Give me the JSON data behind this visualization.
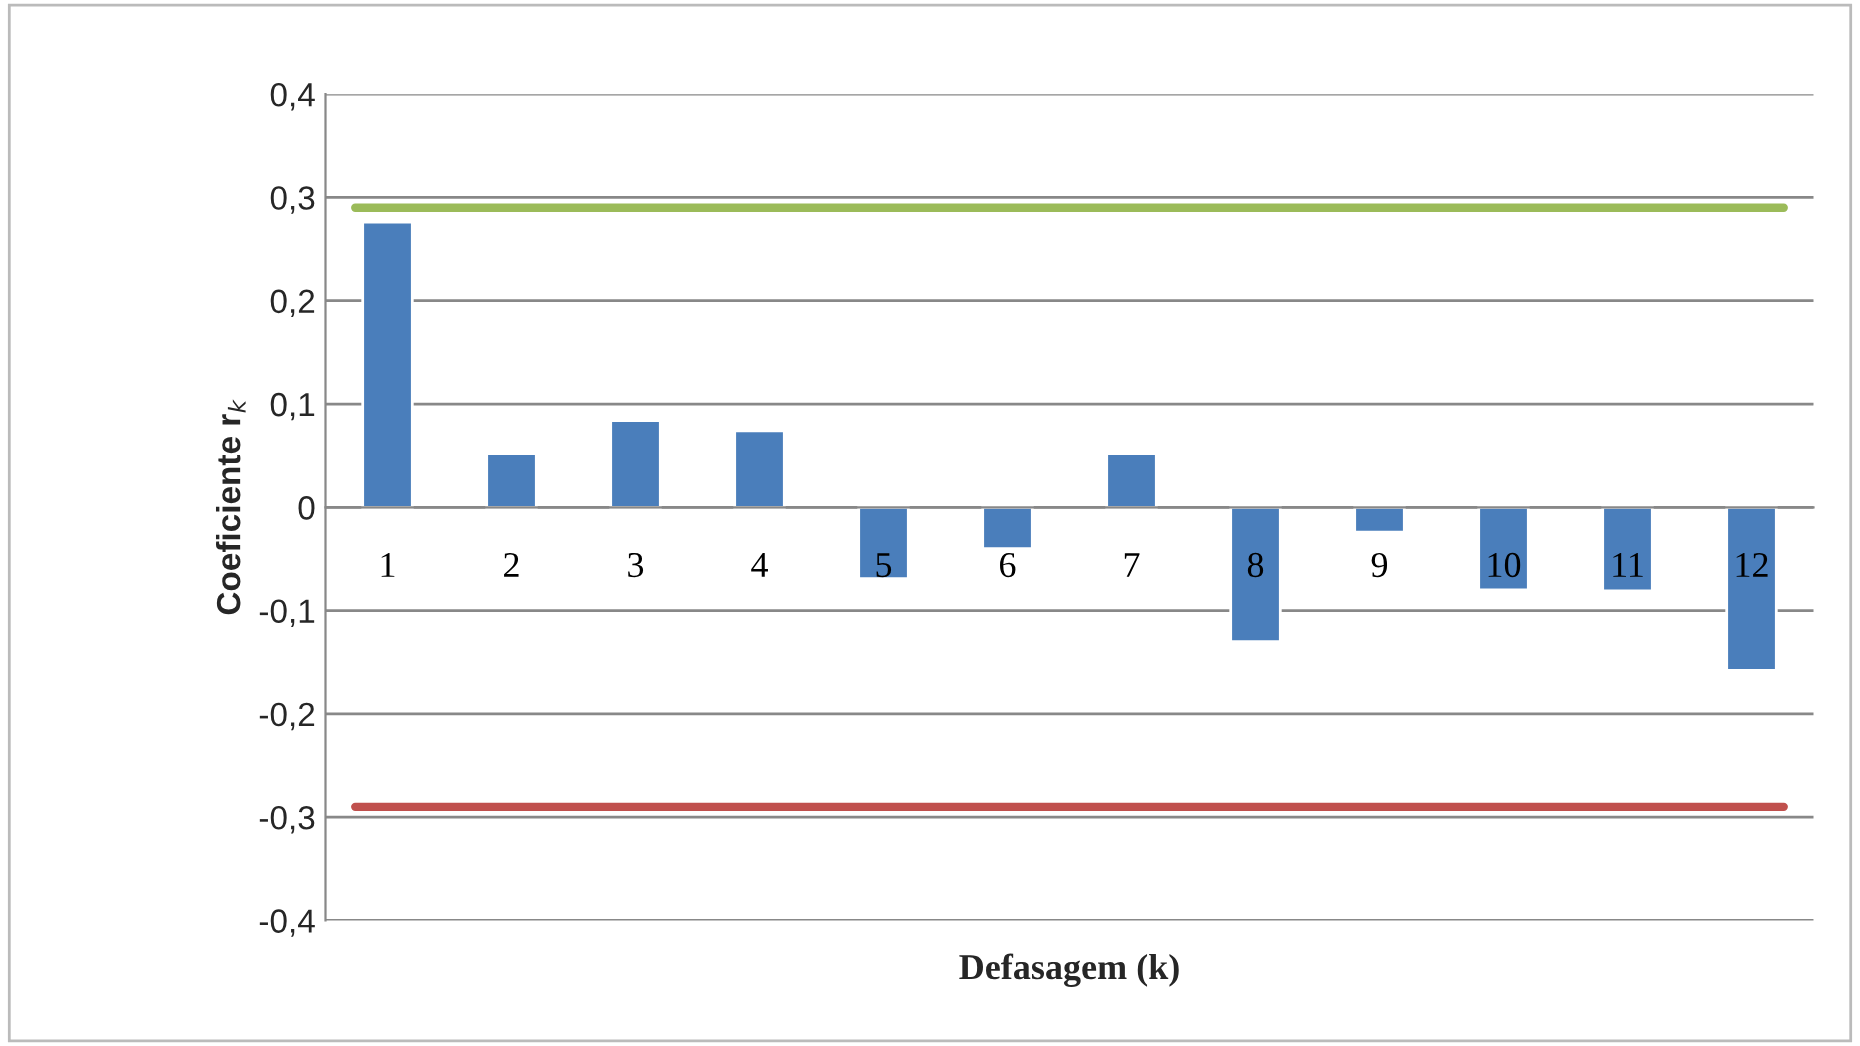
{
  "chart_data": {
    "type": "bar",
    "xlabel": "Defasagem (k)",
    "ylabel": "Coeficiente r$_{k}$",
    "categories": [
      "1",
      "2",
      "3",
      "4",
      "5",
      "6",
      "7",
      "8",
      "9",
      "10",
      "11",
      "12"
    ],
    "series": [
      {
        "color": "#4a7ebb",
        "values": [
          0.276,
          0.052,
          0.084,
          0.074,
          -0.069,
          -0.04,
          0.052,
          -0.13,
          -0.024,
          -0.08,
          -0.081,
          -0.158
        ]
      }
    ],
    "ylim": [
      -0.4,
      0.4
    ],
    "yticks": [
      {
        "value": -0.4,
        "label": "-0,4"
      },
      {
        "value": -0.3,
        "label": "-0,3"
      },
      {
        "value": -0.2,
        "label": "-0,2"
      },
      {
        "value": -0.1,
        "label": "-0,1"
      },
      {
        "value": 0,
        "label": "0"
      },
      {
        "value": 0.1,
        "label": "0,1"
      },
      {
        "value": 0.2,
        "label": "0,2"
      },
      {
        "value": 0.3,
        "label": "0,3"
      },
      {
        "value": 0.4,
        "label": "0,4"
      }
    ],
    "ref_lines": [
      {
        "axis": "y",
        "value": 0.29,
        "color": "#9bbb59"
      },
      {
        "axis": "y",
        "value": -0.29,
        "color": "#c0504d"
      }
    ],
    "grid": "y",
    "legend": false
  }
}
